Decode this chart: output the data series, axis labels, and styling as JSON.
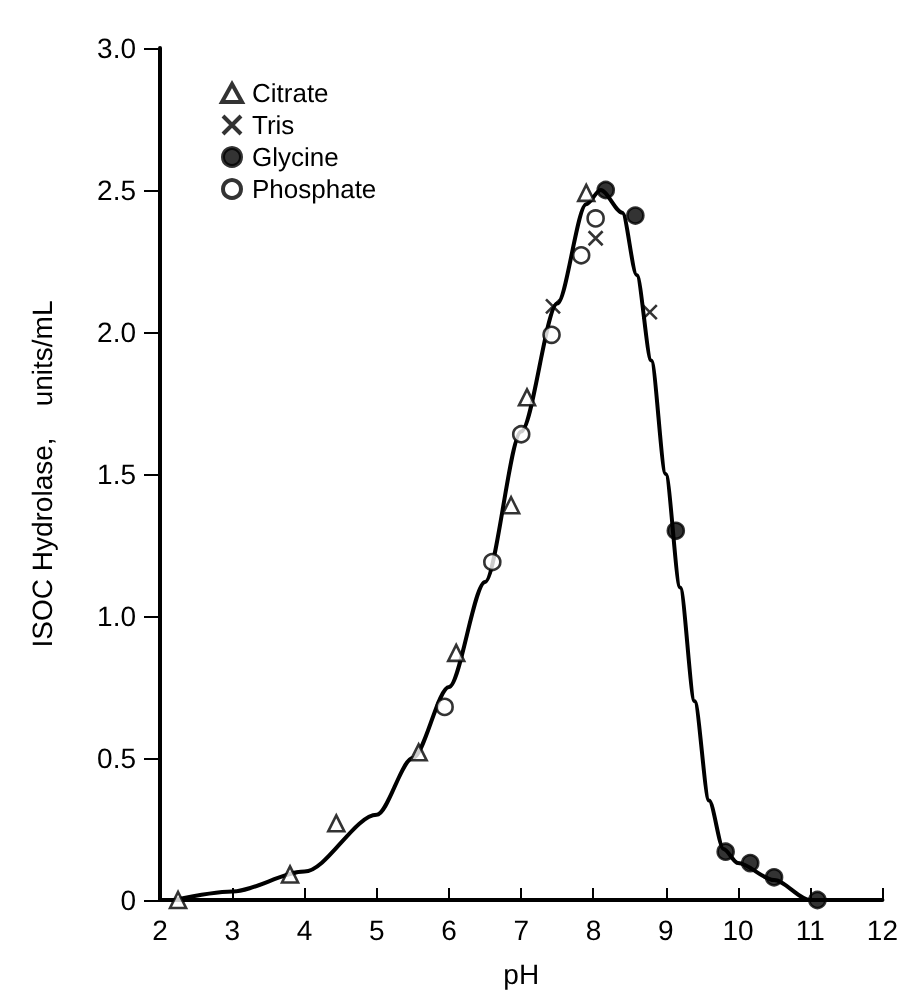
{
  "chart_data": {
    "type": "scatter",
    "xlabel": "pH",
    "ylabel": "ISOC Hydrolase,    units/mL",
    "xlim": [
      2,
      12
    ],
    "xticks": [
      2,
      3,
      4,
      5,
      6,
      7,
      8,
      9,
      10,
      11,
      12
    ],
    "ylim": [
      0,
      3
    ],
    "yticks": [
      0,
      0.5,
      {
        "value": 1,
        "label": "1.0"
      },
      1.5,
      {
        "value": 2,
        "label": "2.0"
      },
      2.5,
      {
        "value": 3,
        "label": "3.0"
      }
    ],
    "legend": "top left",
    "grid": false,
    "series": [
      {
        "name": "Citrate",
        "marker": "triangle",
        "color": "#ffffff",
        "x": [
          2.25,
          3.8,
          4.44,
          5.58,
          6.1,
          6.86,
          7.08,
          7.9
        ],
        "values": [
          0,
          0.09,
          0.27,
          0.52,
          0.87,
          1.39,
          1.77,
          2.49
        ]
      },
      {
        "name": "Tris",
        "marker": "cross",
        "color": "#000000",
        "x": [
          7.44,
          8.03,
          8.78
        ],
        "values": [
          2.09,
          2.33,
          2.07
        ]
      },
      {
        "name": "Glycine",
        "marker": "circle",
        "color": "#000000",
        "x": [
          8.17,
          8.58,
          9.14,
          9.83,
          10.17,
          10.5,
          11.1
        ],
        "values": [
          2.5,
          2.41,
          1.3,
          0.17,
          0.13,
          0.08,
          0
        ]
      },
      {
        "name": "Phosphate",
        "marker": "circle",
        "color": "#ffffff",
        "x": [
          5.94,
          6.6,
          7.0,
          7.42,
          7.83,
          8.03
        ],
        "values": [
          0.68,
          1.19,
          1.64,
          1.99,
          2.27,
          2.4
        ]
      },
      {
        "type": "line",
        "marker": "none",
        "color": "#000000",
        "x": [
          2.2,
          3,
          4,
          5,
          5.5,
          6,
          6.5,
          7,
          7.5,
          7.9,
          8.1,
          8.4,
          8.6,
          8.8,
          9,
          9.2,
          9.4,
          9.6,
          9.8,
          10,
          10.5,
          11,
          11.6
        ],
        "values": [
          0,
          0.03,
          0.1,
          0.3,
          0.5,
          0.75,
          1.12,
          1.65,
          2.1,
          2.45,
          2.5,
          2.42,
          2.2,
          1.9,
          1.5,
          1.1,
          0.7,
          0.35,
          0.18,
          0.13,
          0.07,
          0,
          0
        ]
      }
    ]
  }
}
